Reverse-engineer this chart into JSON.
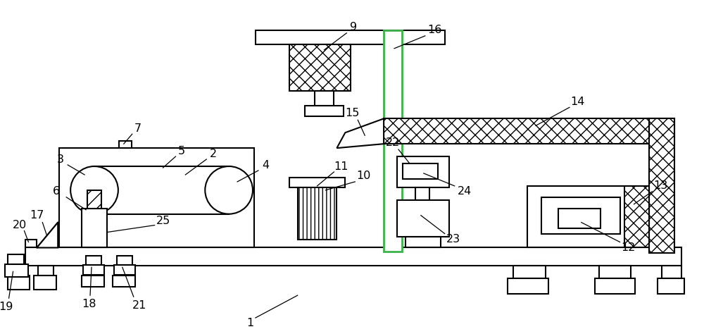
{
  "bg": "#ffffff",
  "lc": "#000000",
  "lw": 1.5,
  "fw": 10.0,
  "fh": 4.74,
  "dpi": 100,
  "green": "#3cb34a"
}
